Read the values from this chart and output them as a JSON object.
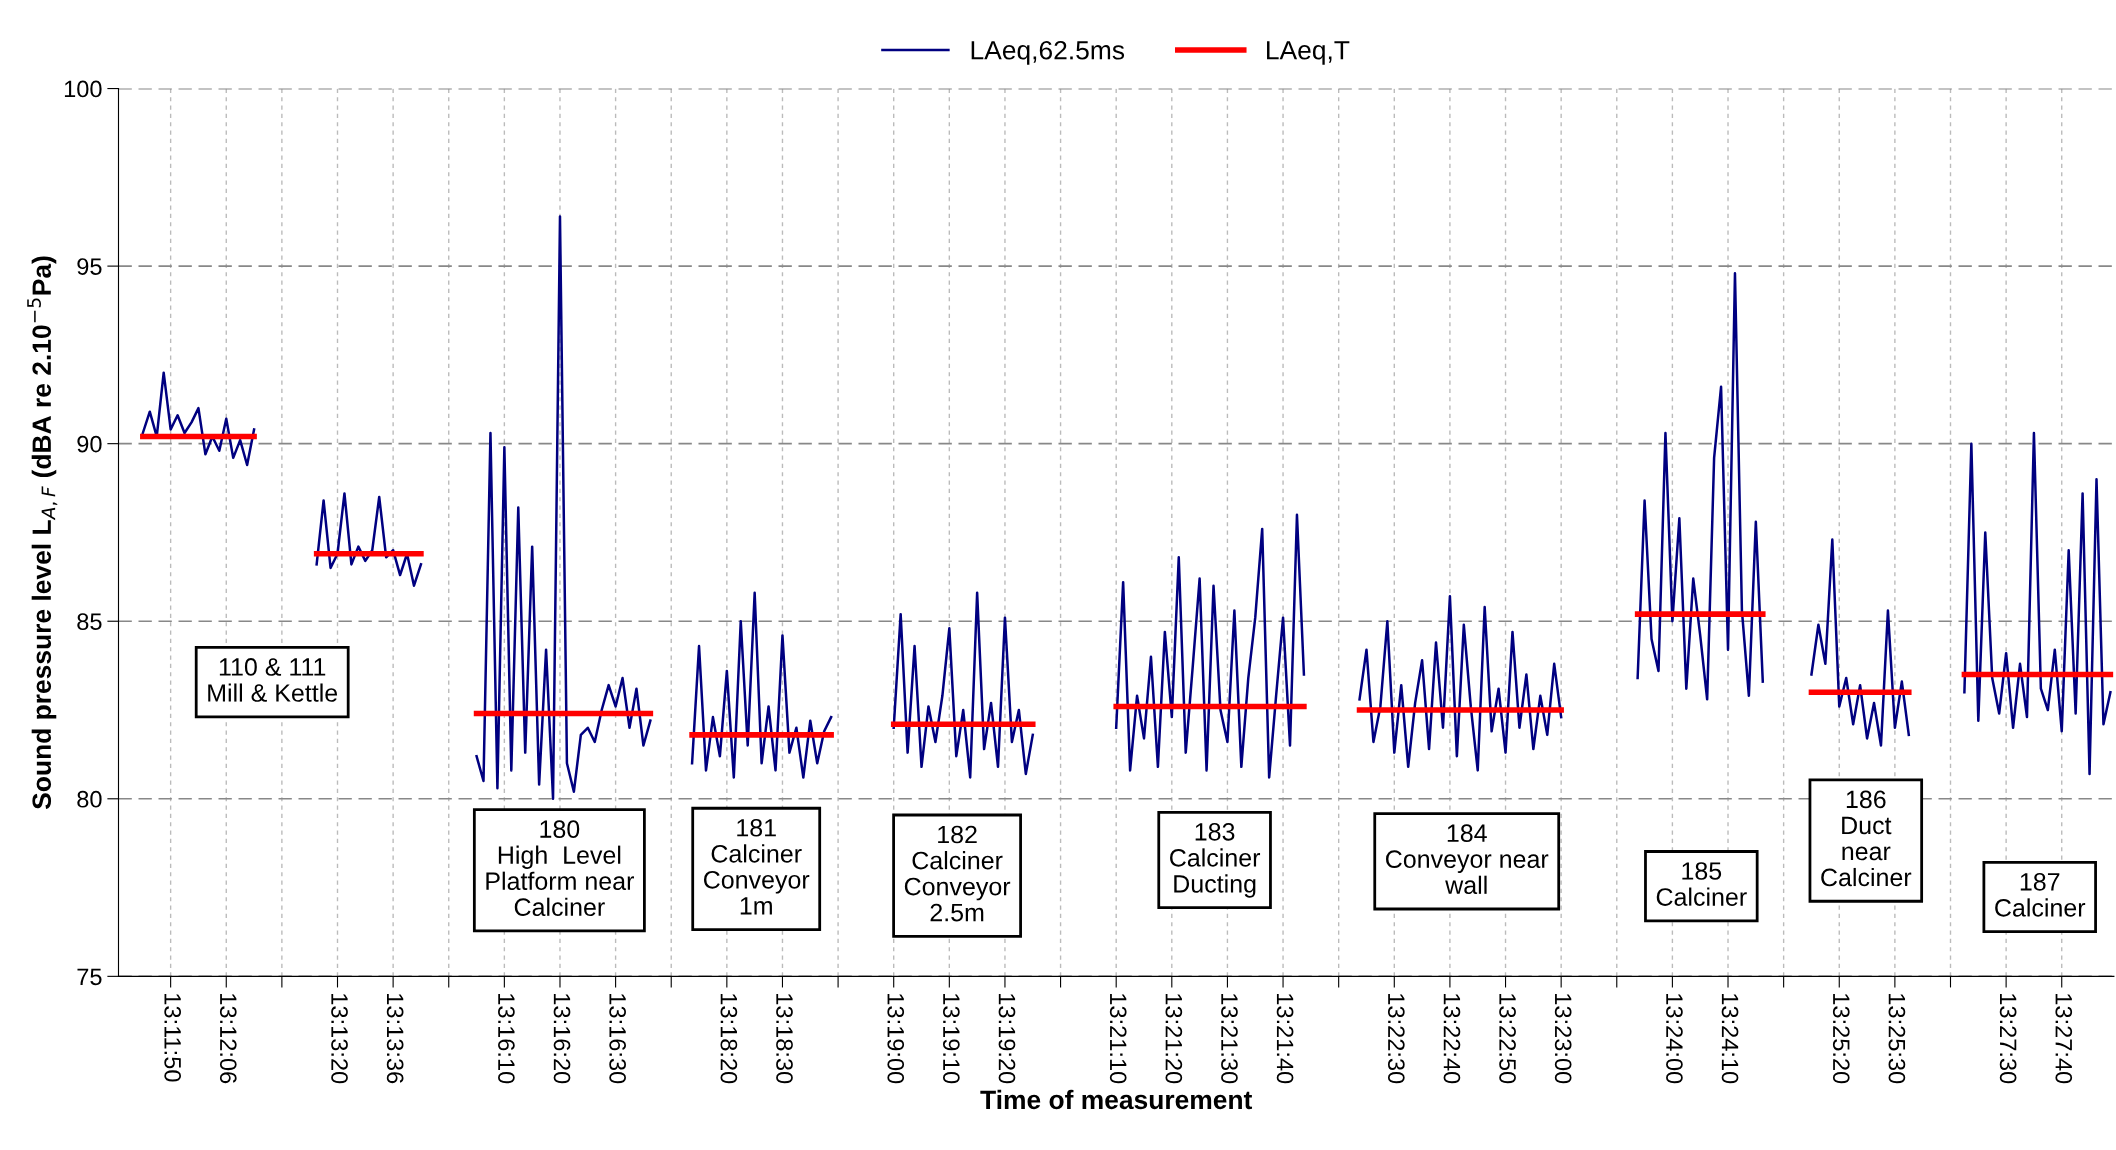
{
  "chart_data": {
    "type": "line",
    "xlabel": "Time of measurement",
    "ylabel": "Sound pressure level L$_{A,F}$ (dBA re 2.10$^{−5}$Pa)",
    "ylim": [
      75,
      100
    ],
    "yticks": [
      75,
      80,
      85,
      90,
      95,
      100
    ],
    "grid": true,
    "legend": "top",
    "line_style": "solid",
    "marker": "none",
    "categories": [
      null,
      null,
      null,
      null,
      null,
      null,
      null,
      "13:11:50",
      null,
      null,
      null,
      null,
      null,
      null,
      null,
      "13:12:06",
      null,
      null,
      null,
      null,
      null,
      null,
      null,
      null,
      null,
      null,
      null,
      null,
      null,
      null,
      null,
      "13:13:20",
      null,
      null,
      null,
      null,
      null,
      null,
      null,
      "13:13:36",
      null,
      null,
      null,
      null,
      null,
      null,
      null,
      null,
      null,
      null,
      null,
      null,
      null,
      null,
      null,
      "13:16:10",
      null,
      null,
      null,
      null,
      null,
      null,
      null,
      "13:16:20",
      null,
      null,
      null,
      null,
      null,
      null,
      null,
      "13:16:30",
      null,
      null,
      null,
      null,
      null,
      null,
      null,
      null,
      null,
      null,
      null,
      null,
      null,
      null,
      null,
      "13:18:20",
      null,
      null,
      null,
      null,
      null,
      null,
      null,
      "13:18:30",
      null,
      null,
      null,
      null,
      null,
      null,
      null,
      null,
      null,
      null,
      null,
      null,
      null,
      null,
      null,
      "13:19:00",
      null,
      null,
      null,
      null,
      null,
      null,
      null,
      "13:19:10",
      null,
      null,
      null,
      null,
      null,
      null,
      null,
      "13:19:20",
      null,
      null,
      null,
      null,
      null,
      null,
      null,
      null,
      null,
      null,
      null,
      null,
      null,
      null,
      null,
      "13:21:10",
      null,
      null,
      null,
      null,
      null,
      null,
      null,
      "13:21:20",
      null,
      null,
      null,
      null,
      null,
      null,
      null,
      "13:21:30",
      null,
      null,
      null,
      null,
      null,
      null,
      null,
      "13:21:40",
      null,
      null,
      null,
      null,
      null,
      null,
      null,
      null,
      null,
      null,
      null,
      null,
      null,
      null,
      null,
      "13:22:30",
      null,
      null,
      null,
      null,
      null,
      null,
      null,
      "13:22:40",
      null,
      null,
      null,
      null,
      null,
      null,
      null,
      "13:22:50",
      null,
      null,
      null,
      null,
      null,
      null,
      null,
      "13:23:00",
      null,
      null,
      null,
      null,
      null,
      null,
      null,
      null,
      null,
      null,
      null,
      null,
      null,
      null,
      null,
      "13:24:00",
      null,
      null,
      null,
      null,
      null,
      null,
      null,
      "13:24:10",
      null,
      null,
      null,
      null,
      null,
      null,
      null,
      null,
      null,
      null,
      null,
      null,
      null,
      null,
      null,
      "13:25:20",
      null,
      null,
      null,
      null,
      null,
      null,
      null,
      "13:25:30",
      null,
      null,
      null,
      null,
      null,
      null,
      null,
      null,
      null,
      null,
      null,
      null,
      null,
      null,
      null,
      "13:27:30",
      null,
      null,
      null,
      null,
      null,
      null,
      null,
      "13:27:40",
      null,
      null,
      null,
      null,
      null,
      null,
      null
    ],
    "series": [
      {
        "name": "LAeq,62.5ms",
        "color": "#000080",
        "values": [
          null,
          null,
          null,
          90.3,
          90.9,
          90.2,
          92.0,
          90.4,
          90.8,
          90.3,
          90.6,
          91.0,
          89.7,
          90.2,
          89.8,
          90.7,
          89.6,
          90.1,
          89.4,
          90.4,
          null,
          null,
          null,
          null,
          null,
          null,
          null,
          null,
          86.6,
          88.4,
          86.5,
          86.9,
          88.6,
          86.6,
          87.1,
          86.7,
          87.0,
          88.5,
          86.8,
          87.0,
          86.3,
          86.9,
          86.0,
          86.6,
          null,
          null,
          null,
          null,
          null,
          null,
          null,
          81.2,
          80.5,
          90.3,
          80.3,
          89.9,
          80.8,
          88.2,
          81.3,
          87.1,
          80.4,
          84.2,
          80.0,
          96.4,
          81.0,
          80.2,
          81.8,
          82.0,
          81.6,
          82.5,
          83.2,
          82.6,
          83.4,
          82.0,
          83.1,
          81.5,
          82.2,
          null,
          null,
          null,
          null,
          null,
          81.0,
          84.3,
          80.8,
          82.3,
          81.2,
          83.6,
          80.6,
          85.0,
          81.5,
          85.8,
          81.0,
          82.6,
          80.8,
          84.6,
          81.3,
          82.0,
          80.6,
          82.2,
          81.0,
          81.9,
          82.3,
          null,
          null,
          null,
          null,
          null,
          null,
          null,
          null,
          82.0,
          85.2,
          81.3,
          84.3,
          80.9,
          82.6,
          81.6,
          82.9,
          84.8,
          81.2,
          82.5,
          80.6,
          85.8,
          81.4,
          82.7,
          80.9,
          85.1,
          81.6,
          82.5,
          80.7,
          81.8,
          null,
          null,
          null,
          null,
          null,
          null,
          null,
          null,
          null,
          null,
          null,
          82.0,
          86.1,
          80.8,
          82.9,
          81.7,
          84.0,
          80.9,
          84.7,
          82.3,
          86.8,
          81.3,
          83.7,
          86.2,
          80.8,
          86.0,
          82.5,
          81.6,
          85.3,
          80.9,
          83.4,
          85.1,
          87.6,
          80.6,
          82.9,
          85.1,
          81.5,
          88.0,
          83.5,
          null,
          null,
          null,
          null,
          null,
          null,
          null,
          82.8,
          84.2,
          81.6,
          82.6,
          85.0,
          81.3,
          83.2,
          80.9,
          82.7,
          83.9,
          81.4,
          84.4,
          82.0,
          85.7,
          81.2,
          84.9,
          82.6,
          80.8,
          85.4,
          81.9,
          83.1,
          81.3,
          84.7,
          82.0,
          83.5,
          81.4,
          82.9,
          81.8,
          83.8,
          82.3,
          null,
          null,
          null,
          null,
          null,
          null,
          null,
          null,
          null,
          null,
          83.4,
          88.4,
          84.5,
          83.6,
          90.3,
          85.0,
          87.9,
          83.1,
          86.2,
          84.6,
          82.8,
          89.6,
          91.6,
          84.2,
          94.8,
          85.3,
          82.9,
          87.8,
          83.3,
          null,
          null,
          null,
          null,
          null,
          null,
          83.5,
          84.9,
          83.8,
          87.3,
          82.6,
          83.4,
          82.1,
          83.2,
          81.7,
          82.7,
          81.5,
          85.3,
          82.0,
          83.3,
          81.8,
          null,
          null,
          null,
          null,
          null,
          null,
          null,
          83.0,
          90.0,
          82.2,
          87.5,
          83.4,
          82.4,
          84.1,
          82.0,
          83.8,
          82.3,
          90.3,
          83.1,
          82.5,
          84.2,
          81.9,
          87.0,
          82.4,
          88.6,
          80.7,
          89.0,
          82.1,
          83.0
        ]
      },
      {
        "name": "LAeq,T",
        "color": "#ff0000",
        "values": [
          null,
          null,
          null,
          90.2,
          90.2,
          90.2,
          90.2,
          90.2,
          90.2,
          90.2,
          90.2,
          90.2,
          90.2,
          90.2,
          90.2,
          90.2,
          90.2,
          90.2,
          90.2,
          90.2,
          null,
          null,
          null,
          null,
          null,
          null,
          null,
          null,
          86.9,
          86.9,
          86.9,
          86.9,
          86.9,
          86.9,
          86.9,
          86.9,
          86.9,
          86.9,
          86.9,
          86.9,
          86.9,
          86.9,
          86.9,
          86.9,
          null,
          null,
          null,
          null,
          null,
          null,
          null,
          82.4,
          82.4,
          82.4,
          82.4,
          82.4,
          82.4,
          82.4,
          82.4,
          82.4,
          82.4,
          82.4,
          82.4,
          82.4,
          82.4,
          82.4,
          82.4,
          82.4,
          82.4,
          82.4,
          82.4,
          82.4,
          82.4,
          82.4,
          82.4,
          82.4,
          82.4,
          null,
          null,
          null,
          null,
          null,
          81.8,
          81.8,
          81.8,
          81.8,
          81.8,
          81.8,
          81.8,
          81.8,
          81.8,
          81.8,
          81.8,
          81.8,
          81.8,
          81.8,
          81.8,
          81.8,
          81.8,
          81.8,
          81.8,
          81.8,
          81.8,
          null,
          null,
          null,
          null,
          null,
          null,
          null,
          null,
          82.1,
          82.1,
          82.1,
          82.1,
          82.1,
          82.1,
          82.1,
          82.1,
          82.1,
          82.1,
          82.1,
          82.1,
          82.1,
          82.1,
          82.1,
          82.1,
          82.1,
          82.1,
          82.1,
          82.1,
          82.1,
          null,
          null,
          null,
          null,
          null,
          null,
          null,
          null,
          null,
          null,
          null,
          82.6,
          82.6,
          82.6,
          82.6,
          82.6,
          82.6,
          82.6,
          82.6,
          82.6,
          82.6,
          82.6,
          82.6,
          82.6,
          82.6,
          82.6,
          82.6,
          82.6,
          82.6,
          82.6,
          82.6,
          82.6,
          82.6,
          82.6,
          82.6,
          82.6,
          82.6,
          82.6,
          82.6,
          null,
          null,
          null,
          null,
          null,
          null,
          null,
          82.5,
          82.5,
          82.5,
          82.5,
          82.5,
          82.5,
          82.5,
          82.5,
          82.5,
          82.5,
          82.5,
          82.5,
          82.5,
          82.5,
          82.5,
          82.5,
          82.5,
          82.5,
          82.5,
          82.5,
          82.5,
          82.5,
          82.5,
          82.5,
          82.5,
          82.5,
          82.5,
          82.5,
          82.5,
          82.5,
          null,
          null,
          null,
          null,
          null,
          null,
          null,
          null,
          null,
          null,
          85.2,
          85.2,
          85.2,
          85.2,
          85.2,
          85.2,
          85.2,
          85.2,
          85.2,
          85.2,
          85.2,
          85.2,
          85.2,
          85.2,
          85.2,
          85.2,
          85.2,
          85.2,
          85.2,
          null,
          null,
          null,
          null,
          null,
          null,
          83.0,
          83.0,
          83.0,
          83.0,
          83.0,
          83.0,
          83.0,
          83.0,
          83.0,
          83.0,
          83.0,
          83.0,
          83.0,
          83.0,
          83.0,
          null,
          null,
          null,
          null,
          null,
          null,
          null,
          83.5,
          83.5,
          83.5,
          83.5,
          83.5,
          83.5,
          83.5,
          83.5,
          83.5,
          83.5,
          83.5,
          83.5,
          83.5,
          83.5,
          83.5,
          83.5,
          83.5,
          83.5,
          83.5,
          83.5,
          83.5,
          83.5
        ]
      }
    ],
    "annotations": [
      "110 & 111\nMill & Kettle",
      "180\nHigh  Level\nPlatform near\nCalciner",
      "181\nCalciner\nConveyor\n1m",
      "182\nCalciner\nConveyor\n2.5m",
      "183\nCalciner\nDucting",
      "184\nConveyor near\nwall",
      "185\nCalciner",
      "186\nDuct\nnear\nCalciner",
      "187\nCalciner"
    ]
  }
}
